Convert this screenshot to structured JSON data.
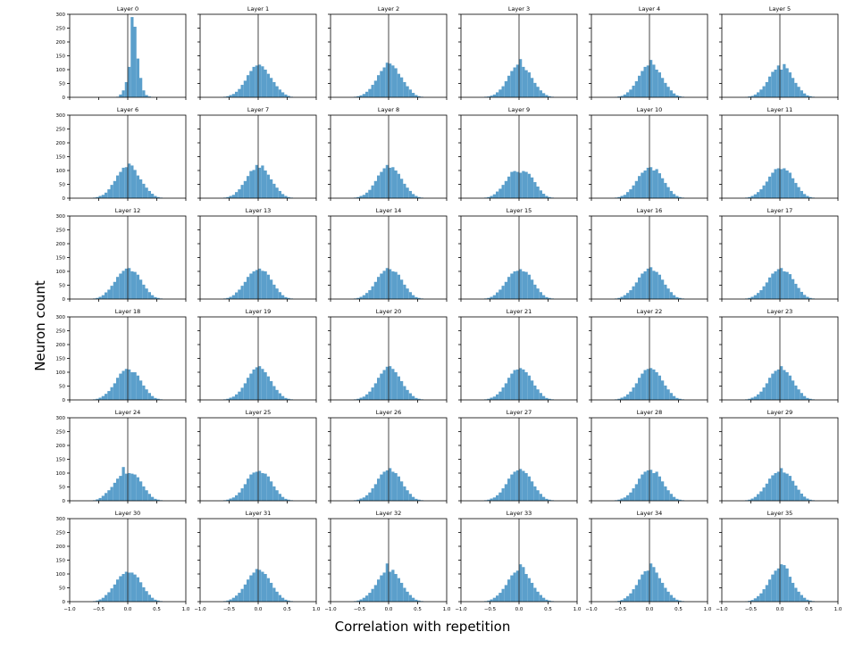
{
  "figure": {
    "xlabel": "Correlation with repetition",
    "ylabel": "Neuron count"
  },
  "colors": {
    "bar": "#5b9fcb",
    "axis": "#000000",
    "zero_line": "#333333"
  },
  "chart_data": {
    "type": "bar",
    "subtype": "histogram-small-multiples",
    "layout": {
      "rows": 6,
      "cols": 6
    },
    "xlim": [
      -1.0,
      1.0
    ],
    "ylim": [
      0,
      300
    ],
    "xticks": [
      -1.0,
      -0.5,
      0.0,
      0.5,
      1.0
    ],
    "xtick_labels": [
      "−1.0",
      "−0.5",
      "0.0",
      "0.5",
      "1.0"
    ],
    "yticks": [
      0,
      50,
      100,
      150,
      200,
      250,
      300
    ],
    "ytick_labels": [
      "0",
      "50",
      "100",
      "150",
      "200",
      "250",
      "300"
    ],
    "bin_width": 0.05,
    "bin_start": -0.6,
    "vline_x": 0.0,
    "grid": false,
    "panels": [
      {
        "title": "Layer 0",
        "counts": [
          0,
          0,
          0,
          0,
          0,
          0,
          0,
          0,
          2,
          10,
          25,
          55,
          110,
          290,
          255,
          140,
          70,
          25,
          8,
          3,
          1,
          0,
          0,
          0
        ]
      },
      {
        "title": "Layer 1",
        "counts": [
          2,
          4,
          8,
          12,
          20,
          30,
          45,
          60,
          80,
          95,
          110,
          115,
          118,
          112,
          100,
          85,
          70,
          55,
          40,
          28,
          18,
          10,
          5,
          2
        ]
      },
      {
        "title": "Layer 2",
        "counts": [
          2,
          4,
          7,
          12,
          20,
          30,
          45,
          60,
          80,
          95,
          108,
          125,
          122,
          115,
          105,
          85,
          72,
          55,
          40,
          28,
          16,
          8,
          4,
          2
        ]
      },
      {
        "title": "Layer 3",
        "counts": [
          2,
          3,
          6,
          10,
          18,
          28,
          40,
          58,
          78,
          95,
          108,
          118,
          138,
          110,
          98,
          90,
          70,
          52,
          38,
          25,
          15,
          8,
          4,
          2
        ]
      },
      {
        "title": "Layer 4",
        "counts": [
          1,
          3,
          5,
          10,
          18,
          28,
          42,
          58,
          78,
          95,
          110,
          115,
          135,
          118,
          100,
          90,
          70,
          52,
          38,
          25,
          14,
          7,
          4,
          2
        ]
      },
      {
        "title": "Layer 5",
        "counts": [
          1,
          3,
          5,
          10,
          18,
          28,
          40,
          55,
          75,
          92,
          100,
          115,
          100,
          120,
          105,
          90,
          70,
          52,
          38,
          25,
          14,
          7,
          4,
          2
        ]
      },
      {
        "title": "Layer 6",
        "counts": [
          2,
          4,
          8,
          12,
          20,
          32,
          48,
          62,
          82,
          95,
          110,
          112,
          125,
          118,
          102,
          82,
          68,
          52,
          38,
          26,
          16,
          8,
          4,
          2
        ]
      },
      {
        "title": "Layer 7",
        "counts": [
          2,
          4,
          8,
          12,
          22,
          32,
          48,
          62,
          80,
          98,
          102,
          120,
          110,
          118,
          100,
          85,
          68,
          52,
          38,
          26,
          15,
          8,
          4,
          2
        ]
      },
      {
        "title": "Layer 8",
        "counts": [
          2,
          4,
          8,
          12,
          20,
          30,
          46,
          62,
          82,
          95,
          108,
          120,
          110,
          112,
          100,
          88,
          70,
          52,
          38,
          26,
          15,
          8,
          4,
          2
        ]
      },
      {
        "title": "Layer 9",
        "counts": [
          2,
          4,
          8,
          14,
          24,
          34,
          48,
          62,
          78,
          95,
          98,
          95,
          92,
          98,
          95,
          88,
          75,
          58,
          42,
          28,
          16,
          8,
          4,
          2
        ]
      },
      {
        "title": "Layer 10",
        "counts": [
          2,
          4,
          8,
          12,
          22,
          32,
          46,
          62,
          80,
          92,
          100,
          110,
          112,
          100,
          105,
          90,
          72,
          55,
          40,
          26,
          15,
          8,
          4,
          2
        ]
      },
      {
        "title": "Layer 11",
        "counts": [
          2,
          4,
          8,
          14,
          22,
          32,
          46,
          60,
          78,
          92,
          105,
          108,
          105,
          108,
          100,
          92,
          72,
          55,
          40,
          26,
          15,
          8,
          4,
          2
        ]
      },
      {
        "title": "Layer 12",
        "counts": [
          2,
          4,
          8,
          14,
          24,
          34,
          48,
          62,
          80,
          92,
          102,
          110,
          112,
          100,
          98,
          88,
          70,
          52,
          38,
          25,
          14,
          7,
          4,
          2
        ]
      },
      {
        "title": "Layer 13",
        "counts": [
          2,
          4,
          8,
          14,
          24,
          34,
          48,
          62,
          80,
          92,
          100,
          105,
          110,
          102,
          100,
          88,
          70,
          52,
          38,
          25,
          14,
          7,
          4,
          2
        ]
      },
      {
        "title": "Layer 14",
        "counts": [
          2,
          4,
          8,
          14,
          22,
          32,
          46,
          62,
          80,
          92,
          102,
          112,
          108,
          100,
          98,
          88,
          70,
          52,
          38,
          25,
          14,
          7,
          4,
          2
        ]
      },
      {
        "title": "Layer 15",
        "counts": [
          2,
          4,
          8,
          14,
          24,
          34,
          48,
          62,
          80,
          92,
          100,
          102,
          108,
          100,
          98,
          88,
          70,
          52,
          38,
          25,
          14,
          7,
          4,
          2
        ]
      },
      {
        "title": "Layer 16",
        "counts": [
          2,
          4,
          8,
          14,
          22,
          32,
          46,
          60,
          78,
          92,
          100,
          110,
          115,
          102,
          98,
          88,
          70,
          52,
          38,
          25,
          14,
          7,
          4,
          2
        ]
      },
      {
        "title": "Layer 17",
        "counts": [
          2,
          4,
          8,
          14,
          22,
          32,
          46,
          60,
          78,
          92,
          100,
          108,
          112,
          100,
          98,
          90,
          72,
          55,
          40,
          26,
          15,
          8,
          4,
          2
        ]
      },
      {
        "title": "Layer 18",
        "counts": [
          2,
          4,
          8,
          14,
          22,
          32,
          46,
          60,
          80,
          95,
          105,
          112,
          110,
          100,
          100,
          88,
          70,
          52,
          38,
          25,
          14,
          7,
          4,
          2
        ]
      },
      {
        "title": "Layer 19",
        "counts": [
          2,
          4,
          8,
          12,
          20,
          30,
          44,
          60,
          80,
          95,
          110,
          118,
          122,
          112,
          100,
          85,
          68,
          50,
          36,
          24,
          14,
          7,
          4,
          2
        ]
      },
      {
        "title": "Layer 20",
        "counts": [
          2,
          4,
          8,
          12,
          20,
          30,
          45,
          60,
          80,
          95,
          108,
          120,
          122,
          112,
          100,
          85,
          68,
          50,
          36,
          24,
          14,
          7,
          4,
          2
        ]
      },
      {
        "title": "Layer 21",
        "counts": [
          2,
          4,
          8,
          12,
          20,
          30,
          45,
          60,
          80,
          95,
          108,
          110,
          115,
          110,
          100,
          88,
          70,
          52,
          38,
          25,
          14,
          7,
          4,
          2
        ]
      },
      {
        "title": "Layer 22",
        "counts": [
          2,
          4,
          8,
          12,
          20,
          30,
          45,
          60,
          80,
          95,
          108,
          112,
          115,
          110,
          100,
          88,
          70,
          52,
          38,
          25,
          14,
          7,
          4,
          2
        ]
      },
      {
        "title": "Layer 23",
        "counts": [
          2,
          4,
          8,
          12,
          20,
          30,
          45,
          60,
          80,
          95,
          105,
          110,
          122,
          108,
          100,
          88,
          70,
          52,
          38,
          25,
          14,
          7,
          4,
          2
        ]
      },
      {
        "title": "Layer 24",
        "counts": [
          2,
          5,
          10,
          18,
          28,
          38,
          50,
          65,
          80,
          90,
          122,
          98,
          100,
          98,
          95,
          85,
          70,
          52,
          38,
          25,
          14,
          7,
          4,
          2
        ]
      },
      {
        "title": "Layer 25",
        "counts": [
          2,
          4,
          8,
          12,
          20,
          30,
          45,
          60,
          80,
          95,
          102,
          105,
          108,
          100,
          98,
          88,
          70,
          52,
          38,
          25,
          14,
          7,
          4,
          2
        ]
      },
      {
        "title": "Layer 26",
        "counts": [
          2,
          4,
          8,
          12,
          20,
          30,
          45,
          60,
          80,
          95,
          105,
          110,
          118,
          105,
          100,
          88,
          70,
          52,
          38,
          25,
          14,
          7,
          4,
          2
        ]
      },
      {
        "title": "Layer 27",
        "counts": [
          2,
          4,
          8,
          12,
          20,
          30,
          45,
          60,
          80,
          95,
          105,
          110,
          115,
          108,
          100,
          88,
          70,
          52,
          38,
          25,
          14,
          7,
          4,
          2
        ]
      },
      {
        "title": "Layer 28",
        "counts": [
          2,
          4,
          8,
          12,
          20,
          30,
          45,
          60,
          80,
          95,
          105,
          110,
          112,
          100,
          105,
          88,
          70,
          52,
          38,
          25,
          14,
          7,
          4,
          2
        ]
      },
      {
        "title": "Layer 29",
        "counts": [
          2,
          4,
          8,
          14,
          24,
          34,
          48,
          62,
          80,
          92,
          100,
          105,
          118,
          102,
          98,
          90,
          72,
          55,
          40,
          26,
          15,
          8,
          4,
          2
        ]
      },
      {
        "title": "Layer 30",
        "counts": [
          2,
          4,
          8,
          14,
          24,
          34,
          48,
          62,
          80,
          92,
          100,
          108,
          105,
          105,
          98,
          88,
          70,
          52,
          38,
          25,
          14,
          7,
          4,
          2
        ]
      },
      {
        "title": "Layer 31",
        "counts": [
          2,
          4,
          8,
          14,
          22,
          32,
          46,
          62,
          80,
          95,
          105,
          118,
          115,
          108,
          100,
          85,
          68,
          50,
          36,
          24,
          14,
          7,
          4,
          2
        ]
      },
      {
        "title": "Layer 32",
        "counts": [
          2,
          4,
          8,
          14,
          22,
          32,
          46,
          60,
          80,
          95,
          105,
          138,
          108,
          115,
          100,
          85,
          68,
          50,
          36,
          24,
          14,
          7,
          4,
          2
        ]
      },
      {
        "title": "Layer 33",
        "counts": [
          2,
          4,
          8,
          14,
          22,
          32,
          46,
          60,
          80,
          95,
          105,
          112,
          135,
          125,
          100,
          85,
          68,
          50,
          36,
          24,
          14,
          7,
          4,
          2
        ]
      },
      {
        "title": "Layer 34",
        "counts": [
          1,
          3,
          6,
          12,
          20,
          30,
          45,
          60,
          80,
          98,
          110,
          112,
          138,
          125,
          105,
          85,
          68,
          50,
          36,
          24,
          14,
          7,
          4,
          2
        ]
      },
      {
        "title": "Layer 35",
        "counts": [
          1,
          3,
          6,
          12,
          20,
          30,
          45,
          60,
          80,
          98,
          112,
          120,
          135,
          132,
          120,
          90,
          68,
          50,
          36,
          24,
          14,
          7,
          4,
          2
        ]
      }
    ]
  }
}
